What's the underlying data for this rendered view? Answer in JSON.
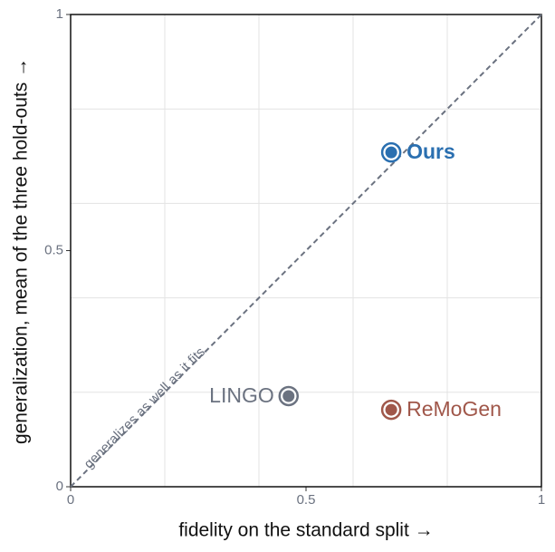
{
  "chart_data": {
    "type": "scatter",
    "x_label": "fidelity on the standard split →",
    "y_label": "generalization, mean of the three hold-outs →",
    "xlim": [
      0,
      1
    ],
    "ylim": [
      0,
      1
    ],
    "xticks": [
      0,
      0.5,
      1
    ],
    "yticks": [
      0,
      0.5,
      1
    ],
    "gridlines": [
      0.2,
      0.4,
      0.6,
      0.8
    ],
    "reference_line": {
      "label": "generalizes as well as it fits",
      "color": "#6b7280"
    },
    "series": [
      {
        "name": "Ours",
        "color": "#2a6fb0",
        "x": [
          0.681
        ],
        "values": [
          0.708
        ],
        "label_side": "right",
        "bold": true
      },
      {
        "name": "LINGO",
        "color": "#6b7280",
        "x": [
          0.463
        ],
        "values": [
          0.192
        ],
        "label_side": "left",
        "bold": false
      },
      {
        "name": "ReMoGen",
        "color": "#a0574a",
        "x": [
          0.681
        ],
        "values": [
          0.163
        ],
        "label_side": "right",
        "bold": false
      }
    ]
  }
}
